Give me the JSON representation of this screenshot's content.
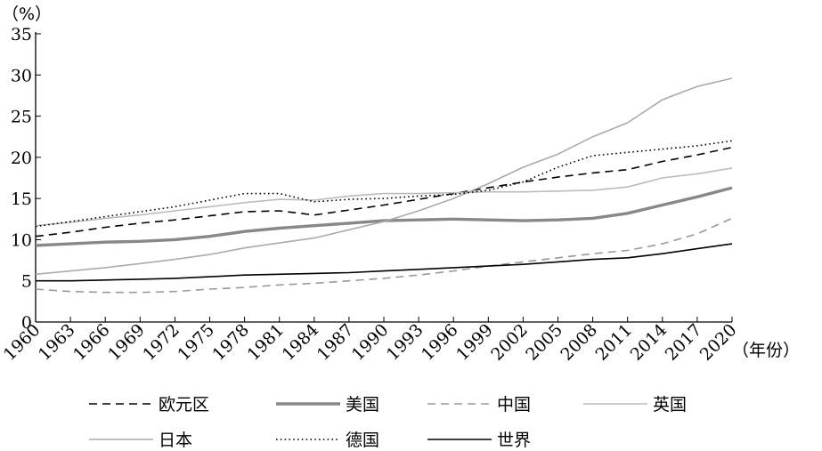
{
  "chart_data": {
    "type": "line",
    "y_unit": "（%）",
    "x_unit": "（年份）",
    "ylim": [
      0,
      35
    ],
    "yticks": [
      0,
      5,
      10,
      15,
      20,
      25,
      30,
      35
    ],
    "xlim": [
      1960,
      2020
    ],
    "xticks": [
      1960,
      1963,
      1966,
      1969,
      1972,
      1975,
      1978,
      1981,
      1984,
      1987,
      1990,
      1993,
      1996,
      1999,
      2002,
      2005,
      2008,
      2011,
      2014,
      2017,
      2020
    ],
    "x": [
      1960,
      1963,
      1966,
      1969,
      1972,
      1975,
      1978,
      1981,
      1984,
      1987,
      1990,
      1993,
      1996,
      1999,
      2002,
      2005,
      2008,
      2011,
      2014,
      2017,
      2020
    ],
    "legend_position": "bottom",
    "series": [
      {
        "name": "欧元区",
        "color": "#000000",
        "dash": "dash",
        "width": "normal",
        "values": [
          10.4,
          10.9,
          11.5,
          12.0,
          12.4,
          12.9,
          13.4,
          13.5,
          13.0,
          13.6,
          14.2,
          14.9,
          15.6,
          16.3,
          17.0,
          17.6,
          18.1,
          18.5,
          19.5,
          20.3,
          21.2
        ]
      },
      {
        "name": "美国",
        "color": "#888888",
        "dash": "solid",
        "width": "thick",
        "values": [
          9.3,
          9.5,
          9.7,
          9.8,
          10.0,
          10.4,
          11.0,
          11.4,
          11.7,
          12.0,
          12.3,
          12.4,
          12.5,
          12.4,
          12.3,
          12.4,
          12.6,
          13.2,
          14.2,
          15.2,
          16.3
        ]
      },
      {
        "name": "中国",
        "color": "#999999",
        "dash": "dash",
        "width": "normal",
        "values": [
          4.0,
          3.7,
          3.6,
          3.6,
          3.7,
          4.0,
          4.2,
          4.5,
          4.7,
          5.0,
          5.3,
          5.7,
          6.2,
          6.8,
          7.3,
          7.8,
          8.3,
          8.7,
          9.5,
          10.7,
          12.6
        ]
      },
      {
        "name": "英国",
        "color": "#bbbbbb",
        "dash": "solid",
        "width": "normal",
        "values": [
          11.7,
          12.1,
          12.6,
          13.0,
          13.5,
          14.0,
          14.5,
          14.9,
          14.8,
          15.3,
          15.6,
          15.6,
          15.7,
          15.8,
          15.8,
          15.9,
          16.0,
          16.4,
          17.5,
          18.0,
          18.7
        ]
      },
      {
        "name": "日本",
        "color": "#aaaaaa",
        "dash": "solid",
        "width": "normal",
        "values": [
          5.8,
          6.2,
          6.6,
          7.1,
          7.6,
          8.2,
          9.0,
          9.6,
          10.2,
          11.2,
          12.2,
          13.5,
          15.0,
          16.8,
          18.8,
          20.4,
          22.5,
          24.2,
          27.0,
          28.6,
          29.6
        ]
      },
      {
        "name": "德国",
        "color": "#000000",
        "dash": "dot",
        "width": "normal",
        "values": [
          11.6,
          12.2,
          12.8,
          13.4,
          14.0,
          14.8,
          15.6,
          15.6,
          14.6,
          14.9,
          15.0,
          15.3,
          15.5,
          16.0,
          17.0,
          18.8,
          20.2,
          20.6,
          21.0,
          21.4,
          22.0
        ]
      },
      {
        "name": "世界",
        "color": "#000000",
        "dash": "solid",
        "width": "normal",
        "values": [
          5.0,
          5.0,
          5.1,
          5.2,
          5.3,
          5.5,
          5.7,
          5.8,
          5.9,
          6.0,
          6.2,
          6.4,
          6.6,
          6.8,
          7.0,
          7.3,
          7.6,
          7.8,
          8.3,
          8.9,
          9.5
        ]
      }
    ]
  }
}
